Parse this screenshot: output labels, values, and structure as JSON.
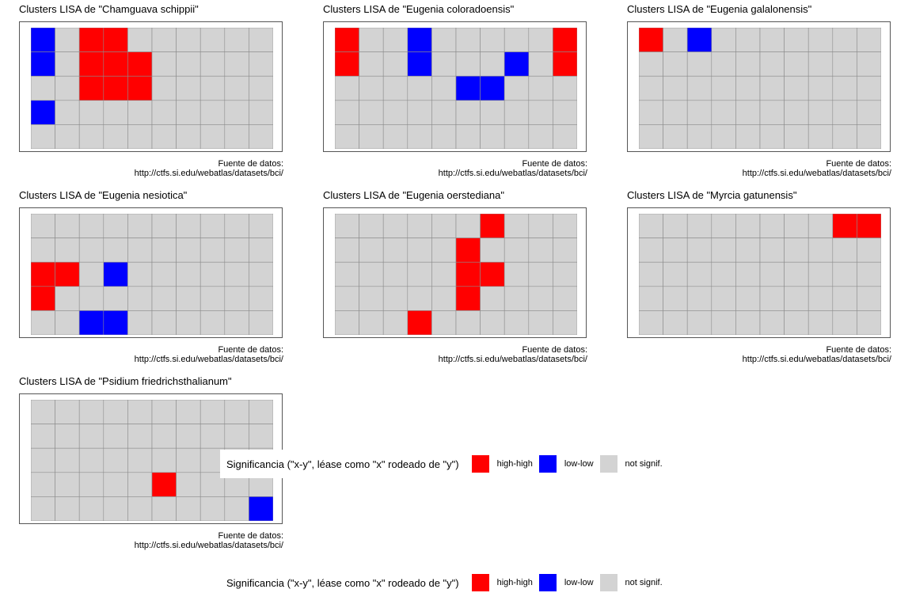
{
  "caption": {
    "line1": "Fuente de datos:",
    "line2": "http://ctfs.si.edu/webatlas/datasets/bci/"
  },
  "legend": {
    "title": "Significancia (\"x-y\", léase como \"x\" rodeado de \"y\")",
    "items": [
      {
        "label": "high-high",
        "color": "#ff0000"
      },
      {
        "label": "low-low",
        "color": "#0000ff"
      },
      {
        "label": "not signif.",
        "color": "#d3d3d3"
      }
    ]
  },
  "colors": {
    "high-high": "#ff0000",
    "low-low": "#0000ff",
    "not signif.": "#d3d3d3",
    "grid_line": "#8c8c8c"
  },
  "chart_data": [
    {
      "type": "heatmap",
      "title": "Clusters LISA de \"Chamguava schippii\"",
      "columns": 10,
      "rows": 5,
      "cells": [
        [
          "low-low",
          "not signif.",
          "high-high",
          "high-high",
          "not signif.",
          "not signif.",
          "not signif.",
          "not signif.",
          "not signif.",
          "not signif."
        ],
        [
          "low-low",
          "not signif.",
          "high-high",
          "high-high",
          "high-high",
          "not signif.",
          "not signif.",
          "not signif.",
          "not signif.",
          "not signif."
        ],
        [
          "not signif.",
          "not signif.",
          "high-high",
          "high-high",
          "high-high",
          "not signif.",
          "not signif.",
          "not signif.",
          "not signif.",
          "not signif."
        ],
        [
          "low-low",
          "not signif.",
          "not signif.",
          "not signif.",
          "not signif.",
          "not signif.",
          "not signif.",
          "not signif.",
          "not signif.",
          "not signif."
        ],
        [
          "not signif.",
          "not signif.",
          "not signif.",
          "not signif.",
          "not signif.",
          "not signif.",
          "not signif.",
          "not signif.",
          "not signif.",
          "not signif."
        ]
      ]
    },
    {
      "type": "heatmap",
      "title": "Clusters LISA de \"Eugenia coloradoensis\"",
      "columns": 10,
      "rows": 5,
      "cells": [
        [
          "high-high",
          "not signif.",
          "not signif.",
          "low-low",
          "not signif.",
          "not signif.",
          "not signif.",
          "not signif.",
          "not signif.",
          "high-high"
        ],
        [
          "high-high",
          "not signif.",
          "not signif.",
          "low-low",
          "not signif.",
          "not signif.",
          "not signif.",
          "low-low",
          "not signif.",
          "high-high"
        ],
        [
          "not signif.",
          "not signif.",
          "not signif.",
          "not signif.",
          "not signif.",
          "low-low",
          "low-low",
          "not signif.",
          "not signif.",
          "not signif."
        ],
        [
          "not signif.",
          "not signif.",
          "not signif.",
          "not signif.",
          "not signif.",
          "not signif.",
          "not signif.",
          "not signif.",
          "not signif.",
          "not signif."
        ],
        [
          "not signif.",
          "not signif.",
          "not signif.",
          "not signif.",
          "not signif.",
          "not signif.",
          "not signif.",
          "not signif.",
          "not signif.",
          "not signif."
        ]
      ]
    },
    {
      "type": "heatmap",
      "title": "Clusters LISA de \"Eugenia galalonensis\"",
      "columns": 10,
      "rows": 5,
      "cells": [
        [
          "high-high",
          "not signif.",
          "low-low",
          "not signif.",
          "not signif.",
          "not signif.",
          "not signif.",
          "not signif.",
          "not signif.",
          "not signif."
        ],
        [
          "not signif.",
          "not signif.",
          "not signif.",
          "not signif.",
          "not signif.",
          "not signif.",
          "not signif.",
          "not signif.",
          "not signif.",
          "not signif."
        ],
        [
          "not signif.",
          "not signif.",
          "not signif.",
          "not signif.",
          "not signif.",
          "not signif.",
          "not signif.",
          "not signif.",
          "not signif.",
          "not signif."
        ],
        [
          "not signif.",
          "not signif.",
          "not signif.",
          "not signif.",
          "not signif.",
          "not signif.",
          "not signif.",
          "not signif.",
          "not signif.",
          "not signif."
        ],
        [
          "not signif.",
          "not signif.",
          "not signif.",
          "not signif.",
          "not signif.",
          "not signif.",
          "not signif.",
          "not signif.",
          "not signif.",
          "not signif."
        ]
      ]
    },
    {
      "type": "heatmap",
      "title": "Clusters LISA de \"Eugenia nesiotica\"",
      "columns": 10,
      "rows": 5,
      "cells": [
        [
          "not signif.",
          "not signif.",
          "not signif.",
          "not signif.",
          "not signif.",
          "not signif.",
          "not signif.",
          "not signif.",
          "not signif.",
          "not signif."
        ],
        [
          "not signif.",
          "not signif.",
          "not signif.",
          "not signif.",
          "not signif.",
          "not signif.",
          "not signif.",
          "not signif.",
          "not signif.",
          "not signif."
        ],
        [
          "high-high",
          "high-high",
          "not signif.",
          "low-low",
          "not signif.",
          "not signif.",
          "not signif.",
          "not signif.",
          "not signif.",
          "not signif."
        ],
        [
          "high-high",
          "not signif.",
          "not signif.",
          "not signif.",
          "not signif.",
          "not signif.",
          "not signif.",
          "not signif.",
          "not signif.",
          "not signif."
        ],
        [
          "not signif.",
          "not signif.",
          "low-low",
          "low-low",
          "not signif.",
          "not signif.",
          "not signif.",
          "not signif.",
          "not signif.",
          "not signif."
        ]
      ]
    },
    {
      "type": "heatmap",
      "title": "Clusters LISA de \"Eugenia oerstediana\"",
      "columns": 10,
      "rows": 5,
      "cells": [
        [
          "not signif.",
          "not signif.",
          "not signif.",
          "not signif.",
          "not signif.",
          "not signif.",
          "high-high",
          "not signif.",
          "not signif.",
          "not signif."
        ],
        [
          "not signif.",
          "not signif.",
          "not signif.",
          "not signif.",
          "not signif.",
          "high-high",
          "not signif.",
          "not signif.",
          "not signif.",
          "not signif."
        ],
        [
          "not signif.",
          "not signif.",
          "not signif.",
          "not signif.",
          "not signif.",
          "high-high",
          "high-high",
          "not signif.",
          "not signif.",
          "not signif."
        ],
        [
          "not signif.",
          "not signif.",
          "not signif.",
          "not signif.",
          "not signif.",
          "high-high",
          "not signif.",
          "not signif.",
          "not signif.",
          "not signif."
        ],
        [
          "not signif.",
          "not signif.",
          "not signif.",
          "high-high",
          "not signif.",
          "not signif.",
          "not signif.",
          "not signif.",
          "not signif.",
          "not signif."
        ]
      ]
    },
    {
      "type": "heatmap",
      "title": "Clusters LISA de \"Myrcia gatunensis\"",
      "columns": 10,
      "rows": 5,
      "cells": [
        [
          "not signif.",
          "not signif.",
          "not signif.",
          "not signif.",
          "not signif.",
          "not signif.",
          "not signif.",
          "not signif.",
          "high-high",
          "high-high"
        ],
        [
          "not signif.",
          "not signif.",
          "not signif.",
          "not signif.",
          "not signif.",
          "not signif.",
          "not signif.",
          "not signif.",
          "not signif.",
          "not signif."
        ],
        [
          "not signif.",
          "not signif.",
          "not signif.",
          "not signif.",
          "not signif.",
          "not signif.",
          "not signif.",
          "not signif.",
          "not signif.",
          "not signif."
        ],
        [
          "not signif.",
          "not signif.",
          "not signif.",
          "not signif.",
          "not signif.",
          "not signif.",
          "not signif.",
          "not signif.",
          "not signif.",
          "not signif."
        ],
        [
          "not signif.",
          "not signif.",
          "not signif.",
          "not signif.",
          "not signif.",
          "not signif.",
          "not signif.",
          "not signif.",
          "not signif.",
          "not signif."
        ]
      ]
    },
    {
      "type": "heatmap",
      "title": "Clusters LISA de \"Psidium friedrichsthalianum\"",
      "columns": 10,
      "rows": 5,
      "cells": [
        [
          "not signif.",
          "not signif.",
          "not signif.",
          "not signif.",
          "not signif.",
          "not signif.",
          "not signif.",
          "not signif.",
          "not signif.",
          "not signif."
        ],
        [
          "not signif.",
          "not signif.",
          "not signif.",
          "not signif.",
          "not signif.",
          "not signif.",
          "not signif.",
          "not signif.",
          "not signif.",
          "not signif."
        ],
        [
          "not signif.",
          "not signif.",
          "not signif.",
          "not signif.",
          "not signif.",
          "not signif.",
          "not signif.",
          "not signif.",
          "not signif.",
          "not signif."
        ],
        [
          "not signif.",
          "not signif.",
          "not signif.",
          "not signif.",
          "not signif.",
          "high-high",
          "not signif.",
          "not signif.",
          "not signif.",
          "not signif."
        ],
        [
          "not signif.",
          "not signif.",
          "not signif.",
          "not signif.",
          "not signif.",
          "not signif.",
          "not signif.",
          "not signif.",
          "not signif.",
          "low-low"
        ]
      ]
    }
  ]
}
